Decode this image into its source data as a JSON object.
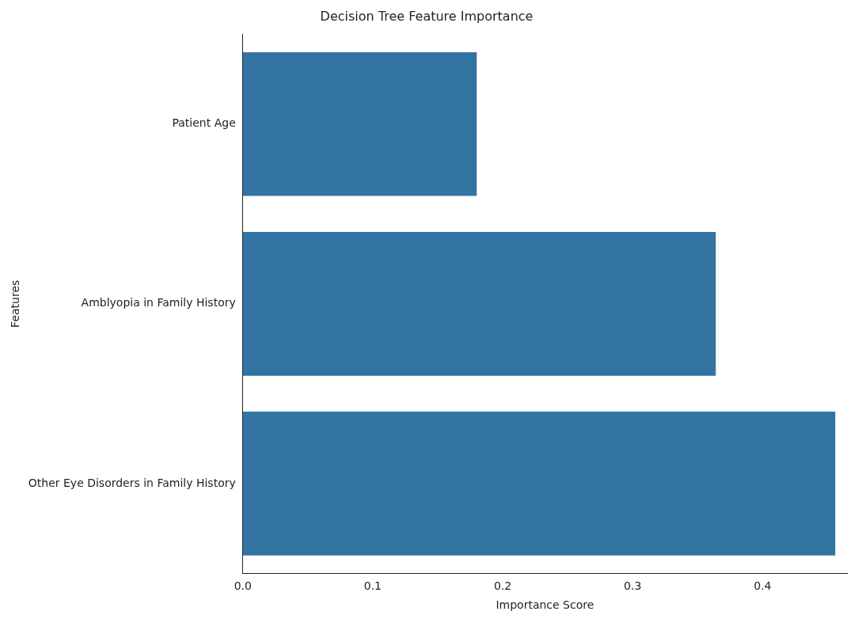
{
  "chart_data": {
    "type": "bar",
    "orientation": "horizontal",
    "title": "Decision Tree Feature Importance",
    "xlabel": "Importance Score",
    "ylabel": "Features",
    "categories": [
      "Patient Age",
      "Amblyopia in Family History",
      "Other Eye Disorders in Family History"
    ],
    "values": [
      0.18,
      0.364,
      0.456
    ],
    "color": "#3274a1",
    "xlim": [
      0,
      0.465
    ],
    "xticks": [
      {
        "value": 0,
        "label": "0.0"
      },
      {
        "value": 0.1,
        "label": "0.1"
      },
      {
        "value": 0.2,
        "label": "0.2"
      },
      {
        "value": 0.3,
        "label": "0.3"
      },
      {
        "value": 0.4,
        "label": "0.4"
      }
    ],
    "grid": false,
    "legend": false
  }
}
